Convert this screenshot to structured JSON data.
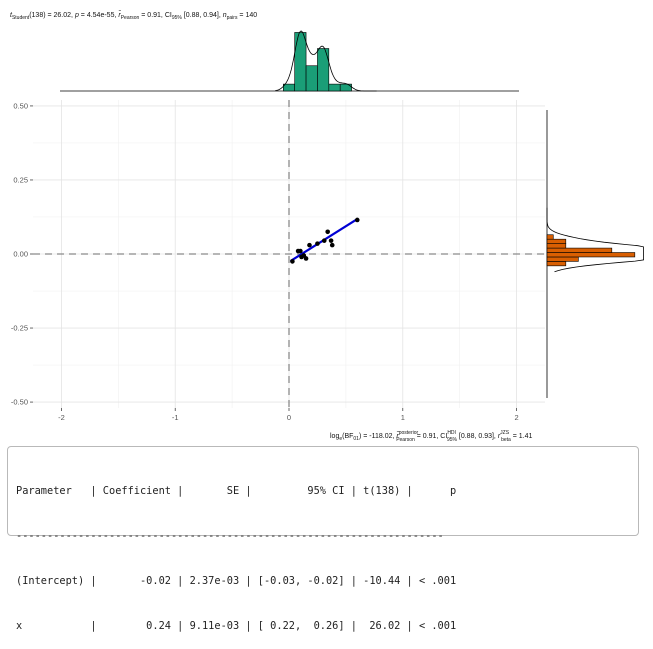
{
  "chart_data": {
    "type": "scatter",
    "title_line": {
      "t_sym": "t",
      "t_sub": "Student",
      "t_val": "(138) = 26.02, ",
      "p_sym": "p",
      "p_val": " = 4.54e-55, ",
      "r_sym": "r̂",
      "r_sub": "Pearson",
      "r_val": " = 0.91, CI",
      "ci_sub": "95%",
      "ci_val": " [0.88, 0.94], ",
      "n_sym": "n",
      "n_sub": "pairs",
      "n_val": " = 140"
    },
    "caption_line": {
      "part1": "log",
      "part1_sub": "e",
      "part2": "(BF",
      "part2_sub": "01",
      "part3": ") = -118.02, ",
      "rho_sym": "r̂",
      "rho_sup": "posterior",
      "rho_sub": "Pearson",
      "part4": " = 0.91, CI",
      "ci_sup": "HDI",
      "ci_sub": "95%",
      "part5": " [0.88, 0.93], ",
      "beta_sym": "r",
      "beta_sup": "JZS",
      "beta_sub": "beta",
      "part6": " = 1.41"
    },
    "xlim": [
      -2.25,
      2.25
    ],
    "ylim": [
      -0.52,
      0.52
    ],
    "x_ticks": [
      -2,
      -1,
      0,
      1,
      2
    ],
    "x_tick_labels": [
      "-2",
      "-1",
      "0",
      "1",
      "2"
    ],
    "y_ticks": [
      -0.5,
      -0.25,
      0,
      0.25,
      0.5
    ],
    "y_tick_labels": [
      "-0.50",
      "-0.25",
      "0.00",
      "0.25",
      "0.50"
    ],
    "grid": true,
    "points": [
      {
        "x": 0.03,
        "y": -0.025
      },
      {
        "x": 0.08,
        "y": 0.01
      },
      {
        "x": 0.1,
        "y": 0.01
      },
      {
        "x": 0.11,
        "y": -0.01
      },
      {
        "x": 0.13,
        "y": -0.005
      },
      {
        "x": 0.15,
        "y": -0.015
      },
      {
        "x": 0.18,
        "y": 0.03
      },
      {
        "x": 0.25,
        "y": 0.035
      },
      {
        "x": 0.31,
        "y": 0.045
      },
      {
        "x": 0.34,
        "y": 0.075
      },
      {
        "x": 0.37,
        "y": 0.045
      },
      {
        "x": 0.38,
        "y": 0.03
      },
      {
        "x": 0.6,
        "y": 0.115
      }
    ],
    "fit_line": {
      "x": [
        0.02,
        0.6
      ],
      "y": [
        -0.022,
        0.118
      ],
      "color": "#0000d4"
    },
    "x_hist": {
      "bin_edges": [
        -0.05,
        0.05,
        0.15,
        0.25,
        0.35,
        0.45,
        0.55,
        0.65
      ],
      "densities": [
        0.3,
        2.55,
        1.1,
        1.85,
        0.3,
        0.3,
        0
      ],
      "color": "#1a9e77",
      "ymax": 2.7
    },
    "y_hist": {
      "bin_edges": [
        -0.04,
        -0.025,
        -0.01,
        0.005,
        0.02,
        0.035,
        0.05,
        0.065,
        0.08,
        0.095,
        0.11,
        0.125
      ],
      "densities": [
        0.45,
        0.75,
        2.1,
        1.55,
        0.45,
        0.45,
        0.15,
        0.0,
        0.0,
        0.0,
        0.0
      ],
      "color": "#d95f02",
      "xmax": 2.2
    }
  },
  "table": {
    "header": "Parameter   | Coefficient |       SE |         95% CI | t(138) |      p",
    "divider": "---------------------------------------------------------------------",
    "rows": [
      "(Intercept) |       -0.02 | 2.37e-03 | [-0.03, -0.02] | -10.44 | < .001",
      "x           |        0.24 | 9.11e-03 | [ 0.22,  0.26] |  26.02 | < .001"
    ]
  }
}
